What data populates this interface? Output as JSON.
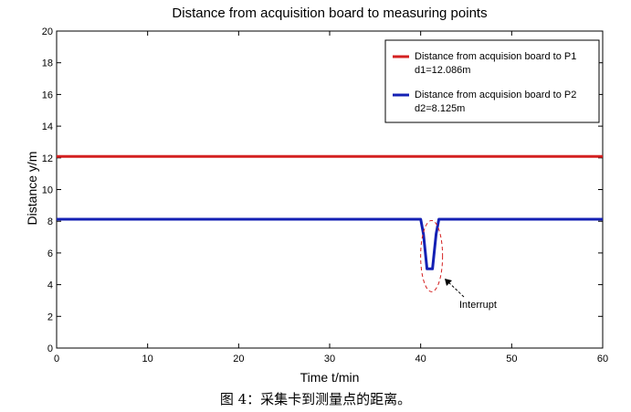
{
  "chart_data": {
    "type": "line",
    "title": "Distance from acquisition board to measuring points",
    "xlabel": "Time t/min",
    "ylabel": "Distance y/m",
    "xlim": [
      0,
      60
    ],
    "ylim": [
      0,
      20
    ],
    "xticks": [
      0,
      10,
      20,
      30,
      40,
      50,
      60
    ],
    "yticks": [
      0,
      2,
      4,
      6,
      8,
      10,
      12,
      14,
      16,
      18,
      20
    ],
    "grid": false,
    "legend_position": "top-right",
    "series": [
      {
        "name": "Distance from acquision board to P1",
        "legend_detail": "d1=12.086m",
        "color": "#d42020",
        "x": [
          0,
          60
        ],
        "y": [
          12.086,
          12.086
        ]
      },
      {
        "name": "Distance from acquision board to P2",
        "legend_detail": "d2=8.125m",
        "color": "#1420b4",
        "x": [
          0,
          40,
          40.3,
          40.7,
          41.3,
          41.7,
          42,
          60
        ],
        "y": [
          8.125,
          8.125,
          7.2,
          5.0,
          5.0,
          7.2,
          8.125,
          8.125
        ]
      }
    ],
    "annotations": [
      {
        "text": "Interrupt",
        "target_x": 41,
        "target_y": 5.2,
        "ellipse_color": "#d42020"
      }
    ]
  },
  "caption": "图 4：采集卡到测量点的距离。"
}
